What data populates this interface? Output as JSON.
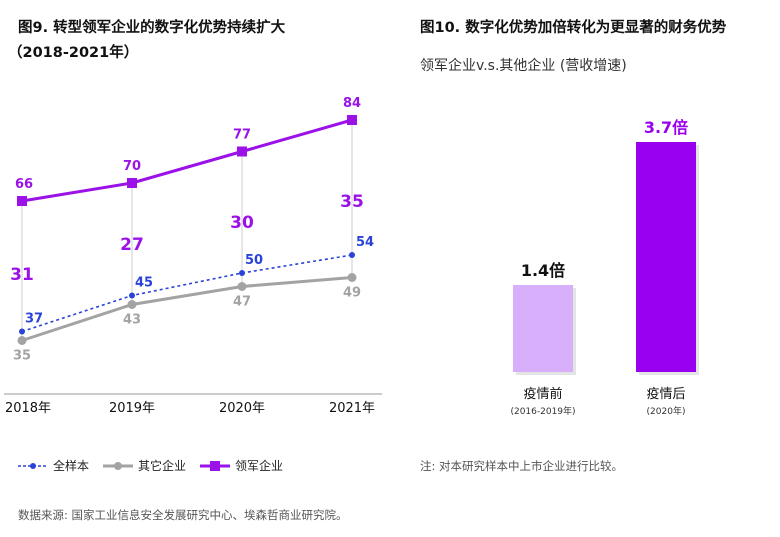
{
  "chart_data": [
    {
      "type": "line",
      "title": "图9. 转型领军企业的数字化优势持续扩大",
      "subtitle": "（2018-2021年）",
      "categories": [
        "2018年",
        "2019年",
        "2020年",
        "2021年"
      ],
      "series": [
        {
          "name": "全样本",
          "values": [
            37,
            45,
            50,
            54
          ],
          "color": "#2b44d8",
          "style": "dashed"
        },
        {
          "name": "其它企业",
          "values": [
            35,
            43,
            47,
            49
          ],
          "color": "#a3a3a3",
          "style": "solid"
        },
        {
          "name": "领军企业",
          "values": [
            66,
            70,
            77,
            84
          ],
          "color": "#9b12e8",
          "style": "solid"
        }
      ],
      "gap_labels": [
        31,
        27,
        30,
        35
      ],
      "legend": "bottom"
    },
    {
      "type": "bar",
      "title": "图10. 数字化优势加倍转化为更显著的财务优势",
      "subtitle": "领军企业v.s.其他企业 (营收增速)",
      "categories": [
        "疫情前",
        "疫情后"
      ],
      "category_sublabels": [
        "(2016-2019年)",
        "(2020年)"
      ],
      "values": [
        1.4,
        3.7
      ],
      "data_labels": [
        "1.4倍",
        "3.7倍"
      ],
      "colors": [
        "#d7affa",
        "#9a00f0"
      ],
      "note": "注: 对本研究样本中上市企业进行比较。"
    }
  ],
  "source": "数据来源: 国家工业信息安全发展研究中心、埃森哲商业研究院。"
}
